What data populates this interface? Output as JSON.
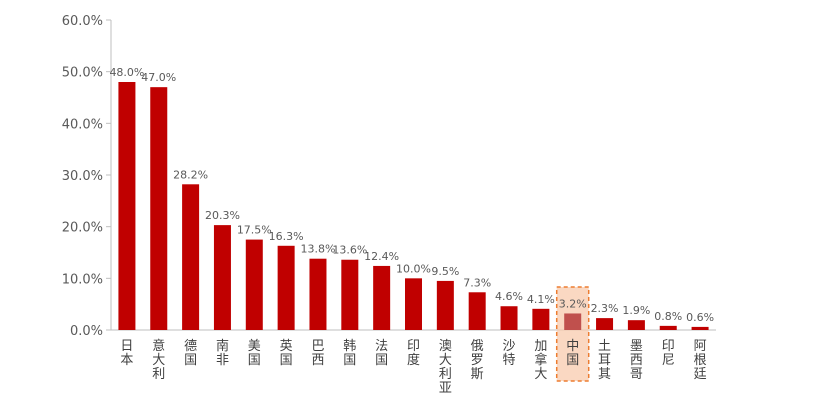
{
  "chart_data": {
    "type": "bar",
    "title": "",
    "xlabel": "",
    "ylabel": "",
    "ylim": [
      0,
      60
    ],
    "yticks": [
      "0.0%",
      "10.0%",
      "20.0%",
      "30.0%",
      "40.0%",
      "50.0%",
      "60.0%"
    ],
    "grid": false,
    "categories": [
      "日本",
      "意大利",
      "德国",
      "南非",
      "美国",
      "英国",
      "巴西",
      "韩国",
      "法国",
      "印度",
      "澳大利亚",
      "俄罗斯",
      "沙特",
      "加拿大",
      "中国",
      "土耳其",
      "墨西哥",
      "印尼",
      "阿根廷"
    ],
    "values": [
      48.0,
      47.0,
      28.2,
      20.3,
      17.5,
      16.3,
      13.8,
      13.6,
      12.4,
      10.0,
      9.5,
      7.3,
      4.6,
      4.1,
      3.2,
      2.3,
      1.9,
      0.8,
      0.6
    ],
    "value_labels": [
      "48.0%",
      "47.0%",
      "28.2%",
      "20.3%",
      "17.5%",
      "16.3%",
      "13.8%",
      "13.6%",
      "12.4%",
      "10.0%",
      "9.5%",
      "7.3%",
      "4.6%",
      "4.1%",
      "3.2%",
      "2.3%",
      "1.9%",
      "0.8%",
      "0.6%"
    ],
    "highlight_category": "中国",
    "colors": {
      "bar": "#c00000",
      "highlight_bar": "#c0504d",
      "highlight_box_fill": "#f8cbad",
      "highlight_box_border": "#ed7d31",
      "axis": "#bfbfbf"
    }
  }
}
